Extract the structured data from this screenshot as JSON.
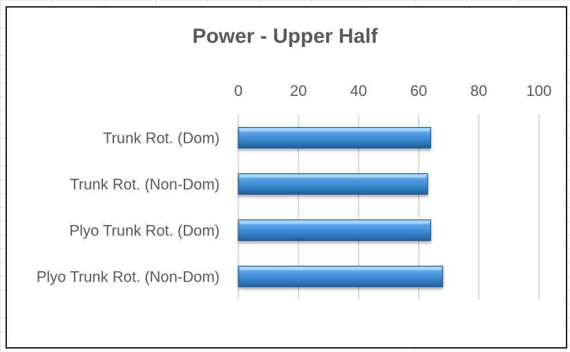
{
  "chart_data": {
    "type": "bar",
    "orientation": "horizontal",
    "title": "Power - Upper Half",
    "xlabel": "",
    "ylabel": "",
    "categories": [
      "Trunk Rot. (Dom)",
      "Trunk Rot. (Non-Dom)",
      "Plyo Trunk Rot. (Dom)",
      "Plyo Trunk Rot. (Non-Dom)"
    ],
    "values": [
      64,
      63,
      64,
      68
    ],
    "xlim": [
      0,
      100
    ],
    "ticks": [
      0,
      20,
      40,
      60,
      80,
      100
    ],
    "tick_labels": [
      "0",
      "20",
      "40",
      "60",
      "80",
      "100"
    ],
    "axis_position": "top",
    "grid": true,
    "legend": "none",
    "bar_color": "#3a86cf",
    "grid_color": "#d9d9d9",
    "text_color": "#595959"
  }
}
